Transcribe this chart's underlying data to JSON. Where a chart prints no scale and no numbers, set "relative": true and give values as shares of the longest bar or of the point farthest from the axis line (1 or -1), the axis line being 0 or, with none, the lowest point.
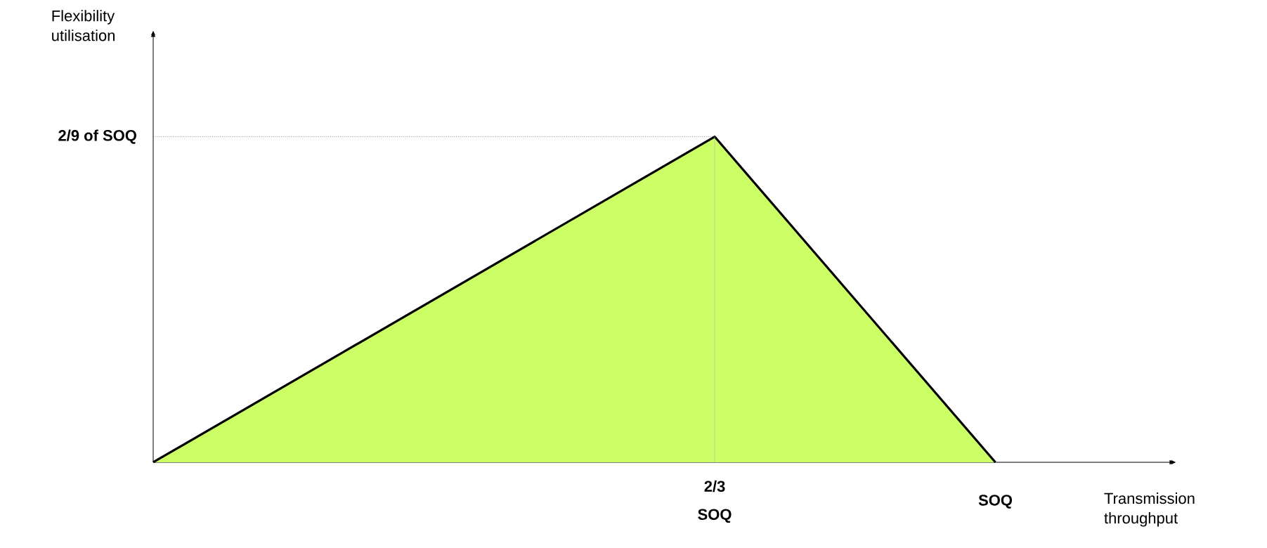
{
  "chart_data": {
    "type": "area",
    "relative": true,
    "xlabel": "Transmission throughput",
    "annotations": [
      "Flexibility utilisation"
    ],
    "categories": [
      null,
      null,
      "2/3 SOQ",
      "SOQ"
    ],
    "series": [
      {
        "color": "#ccff66",
        "values": [
          0,
          0.5,
          1,
          0
        ]
      }
    ],
    "ref_lines": [
      {
        "axis": "y",
        "value": 1,
        "label": "2/9 of SOQ",
        "line_style": "dotted"
      },
      {
        "axis": "x",
        "value": "2/3 SOQ",
        "line_style": "solid"
      }
    ]
  }
}
